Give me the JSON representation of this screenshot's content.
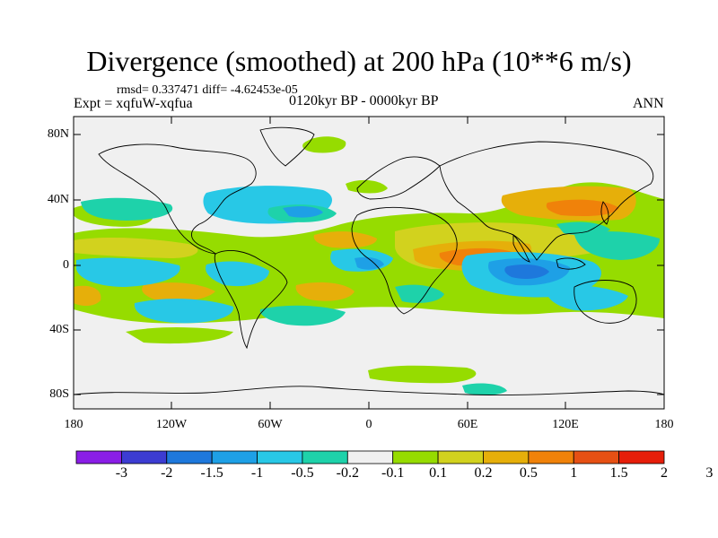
{
  "title": "Divergence (smoothed) at 200 hPa (10**6 m/s)",
  "stats": "rmsd= 0.337471 diff= -4.62453e-05",
  "experiment": "Expt = xqfuW-xqfua",
  "period": "0120kyr BP - 0000kyr BP",
  "season": "ANN",
  "map": {
    "lat_labels": [
      "80N",
      "40N",
      "0",
      "40S",
      "80S"
    ],
    "lon_labels": [
      "180",
      "120W",
      "60W",
      "0",
      "60E",
      "120E",
      "180"
    ]
  },
  "colorbar": {
    "labels": [
      "-3",
      "-2",
      "-1.5",
      "-1",
      "-0.5",
      "-0.2",
      "-0.1",
      "0.1",
      "0.2",
      "0.5",
      "1",
      "1.5",
      "2",
      "3"
    ],
    "colors": [
      "#8a1ee6",
      "#3c3cd2",
      "#1e78dc",
      "#1ea0e6",
      "#28c8e6",
      "#1ed2aa",
      "#f0f0f0",
      "#96dc00",
      "#d2d21e",
      "#e6af0a",
      "#f0820a",
      "#e65014",
      "#e61e0a"
    ]
  },
  "colors": {
    "ocean_land_background": "#f0f0f0",
    "coast": "#000000"
  }
}
